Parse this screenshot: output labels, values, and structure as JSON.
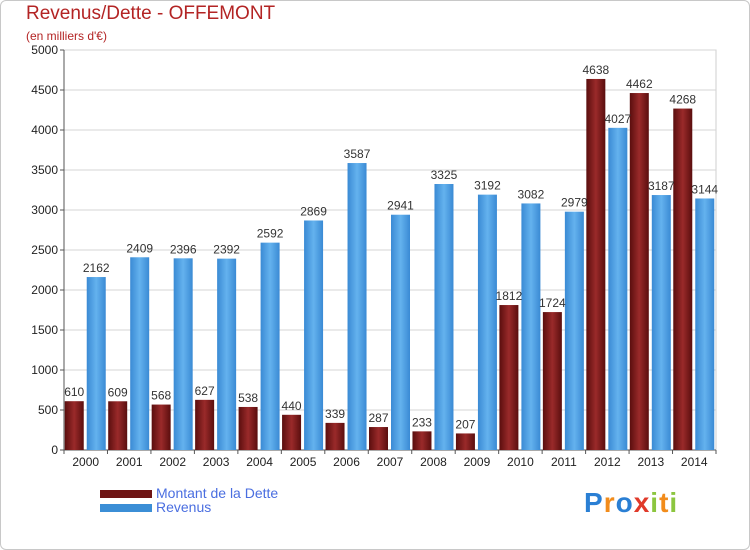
{
  "header": {
    "title": "Revenus/Dette - OFFEMONT",
    "subtitle": "(en milliers d'€)"
  },
  "legend": {
    "items": [
      {
        "label": "Montant de la Dette",
        "color": "#6e1414"
      },
      {
        "label": "Revenus",
        "color": "#3b8ed6"
      }
    ]
  },
  "logo": {
    "text": "Proxiti",
    "letters": [
      {
        "ch": "P",
        "color": "#2a7fd4"
      },
      {
        "ch": "r",
        "color": "#f28c1b"
      },
      {
        "ch": "o",
        "color": "#2a7fd4"
      },
      {
        "ch": "x",
        "color": "#e03a2a"
      },
      {
        "ch": "i",
        "color": "#8cc63f"
      },
      {
        "ch": "t",
        "color": "#f28c1b"
      },
      {
        "ch": "i",
        "color": "#8cc63f"
      }
    ]
  },
  "chart_data": {
    "type": "bar",
    "categories": [
      "2000",
      "2001",
      "2002",
      "2003",
      "2004",
      "2005",
      "2006",
      "2007",
      "2008",
      "2009",
      "2010",
      "2011",
      "2012",
      "2013",
      "2014"
    ],
    "series": [
      {
        "name": "Montant de la Dette",
        "color": "#6e1414",
        "values": [
          610,
          609,
          568,
          627,
          538,
          440,
          339,
          287,
          233,
          207,
          1812,
          1724,
          4638,
          4462,
          4268
        ],
        "labels": [
          "610",
          "609",
          "568",
          "627",
          "538",
          "440",
          "339",
          "287",
          "233",
          "207",
          "1812",
          "1724",
          "4638",
          "4462",
          "4268"
        ]
      },
      {
        "name": "Revenus",
        "color": "#3b8ed6",
        "values": [
          2162,
          2409,
          2396,
          2392,
          2592,
          2869,
          3587,
          2941,
          3325,
          3192,
          3082,
          2979,
          4027,
          3187,
          3144
        ],
        "labels": [
          "2162",
          "2409",
          "2396",
          "2392",
          "2592",
          "2869",
          "3587",
          "2941",
          "3325",
          "3192",
          "3082",
          "2979",
          "4027",
          "3187",
          "3144"
        ]
      }
    ],
    "title": "Revenus/Dette - OFFEMONT",
    "ylabel": "(en milliers d'€)",
    "xlabel": "",
    "ylim": [
      0,
      5000
    ],
    "yticks": [
      0,
      500,
      1000,
      1500,
      2000,
      2500,
      3000,
      3500,
      4000,
      4500,
      5000
    ],
    "grid": true,
    "legend_position": "bottom-left"
  }
}
